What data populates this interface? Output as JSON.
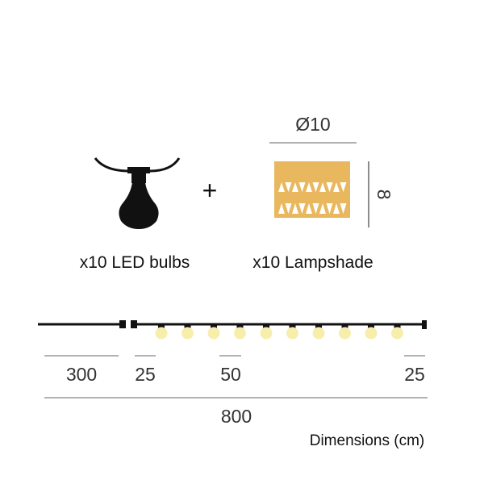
{
  "bulb_label": "x10 LED bulbs",
  "plus": "+",
  "lampshade_label": "x10 Lampshade",
  "lampshade_diameter": "Ø10",
  "lampshade_height": "8",
  "dimensions": {
    "lead_cable": "300",
    "first_spacing": "25",
    "bulb_spacing": "50",
    "last_spacing": "25",
    "total": "800",
    "unit_label": "Dimensions (cm)"
  },
  "bulb_count": 10,
  "colors": {
    "lampshade": "#e9b75e",
    "bulb_glow": "#f8eeac",
    "cable": "#111111",
    "dimension_line": "#999999"
  }
}
